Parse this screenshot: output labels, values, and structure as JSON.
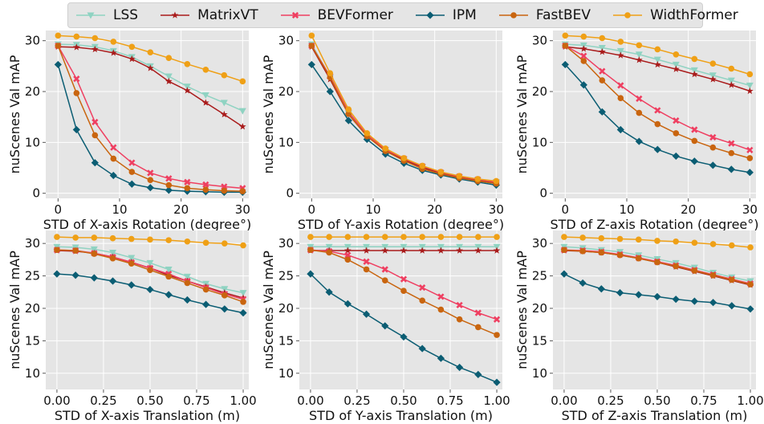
{
  "legend": {
    "entries": [
      {
        "name": "LSS",
        "color": "#8fd3c2",
        "marker": "tri-down"
      },
      {
        "name": "MatrixVT",
        "color": "#a91b1b",
        "marker": "star"
      },
      {
        "name": "BEVFormer",
        "color": "#ef3f61",
        "marker": "x"
      },
      {
        "name": "IPM",
        "color": "#0b5d73",
        "marker": "diamond"
      },
      {
        "name": "FastBEV",
        "color": "#c9650f",
        "marker": "circle"
      },
      {
        "name": "WidthFormer",
        "color": "#efa016",
        "marker": "circle"
      }
    ]
  },
  "chart_data": [
    {
      "type": "line",
      "xlabel": "STD of X-axis Rotation (degree°)",
      "ylabel": "nuScenes Val mAP",
      "xlim": [
        -2,
        31
      ],
      "ylim": [
        -1,
        32
      ],
      "xticks": [
        0,
        10,
        20,
        30
      ],
      "yticks": [
        0,
        10,
        20,
        30
      ],
      "xtick_labels": [
        "0",
        "10",
        "20",
        "30"
      ],
      "ytick_labels": [
        "0",
        "10",
        "20",
        "30"
      ],
      "x": [
        0,
        3,
        6,
        9,
        12,
        15,
        18,
        21,
        24,
        27,
        30
      ],
      "series": [
        {
          "name": "LSS",
          "values": [
            29.3,
            29.2,
            28.8,
            28.0,
            26.8,
            25.0,
            23.0,
            21.0,
            19.3,
            17.8,
            16.2
          ]
        },
        {
          "name": "MatrixVT",
          "values": [
            28.8,
            28.7,
            28.3,
            27.6,
            26.4,
            24.6,
            22.0,
            20.2,
            17.8,
            15.5,
            13.1
          ]
        },
        {
          "name": "BEVFormer",
          "values": [
            29.0,
            22.5,
            14.0,
            9.0,
            6.0,
            4.0,
            2.9,
            2.2,
            1.7,
            1.3,
            1.0
          ]
        },
        {
          "name": "IPM",
          "values": [
            25.3,
            12.5,
            6.0,
            3.5,
            1.8,
            1.1,
            0.6,
            0.4,
            0.3,
            0.2,
            0.2
          ]
        },
        {
          "name": "FastBEV",
          "values": [
            29.0,
            19.7,
            11.4,
            6.8,
            4.2,
            2.6,
            1.6,
            1.0,
            0.7,
            0.5,
            0.4
          ]
        },
        {
          "name": "WidthFormer",
          "values": [
            31.0,
            30.8,
            30.5,
            29.8,
            28.8,
            27.7,
            26.6,
            25.4,
            24.3,
            23.2,
            22.0
          ]
        }
      ]
    },
    {
      "type": "line",
      "xlabel": "STD of Y-axis Rotation (degree°)",
      "ylabel": "nuScenes Val mAP",
      "xlim": [
        -2,
        31
      ],
      "ylim": [
        -1,
        32
      ],
      "xticks": [
        0,
        10,
        20,
        30
      ],
      "yticks": [
        0,
        10,
        20,
        30
      ],
      "xtick_labels": [
        "0",
        "10",
        "20",
        "30"
      ],
      "ytick_labels": [
        "0",
        "10",
        "20",
        "30"
      ],
      "x": [
        0,
        3,
        6,
        9,
        12,
        15,
        18,
        21,
        24,
        27,
        30
      ],
      "series": [
        {
          "name": "LSS",
          "values": [
            29.3,
            22.8,
            15.7,
            11.3,
            8.5,
            6.7,
            5.2,
            4.0,
            3.2,
            2.6,
            2.2
          ]
        },
        {
          "name": "MatrixVT",
          "values": [
            28.8,
            22.4,
            15.5,
            11.2,
            8.4,
            6.6,
            5.1,
            3.9,
            3.1,
            2.5,
            2.0
          ]
        },
        {
          "name": "BEVFormer",
          "values": [
            29.0,
            23.0,
            16.0,
            11.5,
            8.6,
            6.8,
            5.3,
            4.1,
            3.3,
            2.7,
            2.2
          ]
        },
        {
          "name": "IPM",
          "values": [
            25.3,
            20.0,
            14.3,
            10.6,
            7.7,
            5.9,
            4.5,
            3.6,
            2.8,
            2.2,
            1.6
          ]
        },
        {
          "name": "FastBEV",
          "values": [
            29.0,
            22.8,
            15.6,
            11.2,
            8.3,
            6.4,
            4.8,
            3.8,
            3.0,
            2.4,
            1.9
          ]
        },
        {
          "name": "WidthFormer",
          "values": [
            31.0,
            23.6,
            16.5,
            11.8,
            8.8,
            6.9,
            5.4,
            4.2,
            3.4,
            2.8,
            2.4
          ]
        }
      ]
    },
    {
      "type": "line",
      "xlabel": "STD of Z-axis Rotation (degree°)",
      "ylabel": "nuScenes Val mAP",
      "xlim": [
        -2,
        31
      ],
      "ylim": [
        -1,
        32
      ],
      "xticks": [
        0,
        10,
        20,
        30
      ],
      "yticks": [
        0,
        10,
        20,
        30
      ],
      "xtick_labels": [
        "0",
        "10",
        "20",
        "30"
      ],
      "ytick_labels": [
        "0",
        "10",
        "20",
        "30"
      ],
      "x": [
        0,
        3,
        6,
        9,
        12,
        15,
        18,
        21,
        24,
        27,
        30
      ],
      "series": [
        {
          "name": "LSS",
          "values": [
            29.3,
            29.1,
            28.6,
            28.0,
            27.3,
            26.3,
            25.3,
            24.2,
            23.2,
            22.2,
            21.2
          ]
        },
        {
          "name": "MatrixVT",
          "values": [
            28.8,
            28.4,
            27.8,
            27.1,
            26.2,
            25.3,
            24.4,
            23.4,
            22.4,
            21.3,
            20.1
          ]
        },
        {
          "name": "BEVFormer",
          "values": [
            29.0,
            27.0,
            24.0,
            21.2,
            18.6,
            16.3,
            14.3,
            12.5,
            11.0,
            9.8,
            8.5
          ]
        },
        {
          "name": "IPM",
          "values": [
            25.3,
            21.3,
            16.0,
            12.5,
            10.2,
            8.6,
            7.3,
            6.3,
            5.5,
            4.7,
            4.1
          ]
        },
        {
          "name": "FastBEV",
          "values": [
            29.0,
            26.0,
            22.2,
            18.7,
            15.8,
            13.6,
            11.8,
            10.3,
            9.0,
            7.9,
            6.9
          ]
        },
        {
          "name": "WidthFormer",
          "values": [
            31.0,
            30.8,
            30.5,
            29.8,
            29.1,
            28.3,
            27.3,
            26.4,
            25.5,
            24.5,
            23.4
          ]
        }
      ]
    },
    {
      "type": "line",
      "xlabel": "STD of X-axis Translation (m)",
      "ylabel": "nuScenes Val mAP",
      "xlim": [
        -0.06,
        1.03
      ],
      "ylim": [
        7.5,
        32
      ],
      "xticks": [
        0,
        0.25,
        0.5,
        0.75,
        1
      ],
      "yticks": [
        10,
        15,
        20,
        25,
        30
      ],
      "xtick_labels": [
        "0.00",
        "0.25",
        "0.50",
        "0.75",
        "1.00"
      ],
      "ytick_labels": [
        "10",
        "15",
        "20",
        "25",
        "30"
      ],
      "x": [
        0,
        0.1,
        0.2,
        0.3,
        0.4,
        0.5,
        0.6,
        0.7,
        0.8,
        0.9,
        1.0
      ],
      "series": [
        {
          "name": "LSS",
          "values": [
            29.5,
            29.4,
            29.1,
            28.6,
            27.8,
            27.0,
            26.0,
            24.9,
            23.8,
            23.0,
            22.4
          ]
        },
        {
          "name": "MatrixVT",
          "values": [
            28.9,
            28.8,
            28.5,
            27.9,
            27.1,
            26.2,
            25.1,
            24.2,
            23.3,
            22.4,
            21.6
          ]
        },
        {
          "name": "BEVFormer",
          "values": [
            29.0,
            28.9,
            28.5,
            27.9,
            27.1,
            26.2,
            25.3,
            24.2,
            23.2,
            22.2,
            21.4
          ]
        },
        {
          "name": "IPM",
          "values": [
            25.3,
            25.1,
            24.7,
            24.2,
            23.6,
            22.9,
            22.1,
            21.3,
            20.6,
            19.9,
            19.3
          ]
        },
        {
          "name": "FastBEV",
          "values": [
            29.0,
            28.9,
            28.4,
            27.7,
            26.9,
            25.9,
            24.9,
            23.9,
            22.9,
            22.0,
            21.0
          ]
        },
        {
          "name": "WidthFormer",
          "values": [
            31.0,
            30.9,
            30.9,
            30.8,
            30.7,
            30.6,
            30.5,
            30.3,
            30.1,
            30.0,
            29.7
          ]
        }
      ]
    },
    {
      "type": "line",
      "xlabel": "STD of Y-axis Translation (m)",
      "ylabel": "nuScenes Val mAP",
      "xlim": [
        -0.06,
        1.03
      ],
      "ylim": [
        7.5,
        32
      ],
      "xticks": [
        0,
        0.25,
        0.5,
        0.75,
        1
      ],
      "yticks": [
        10,
        15,
        20,
        25,
        30
      ],
      "xtick_labels": [
        "0.00",
        "0.25",
        "0.50",
        "0.75",
        "1.00"
      ],
      "ytick_labels": [
        "10",
        "15",
        "20",
        "25",
        "30"
      ],
      "x": [
        0,
        0.1,
        0.2,
        0.3,
        0.4,
        0.5,
        0.6,
        0.7,
        0.8,
        0.9,
        1.0
      ],
      "series": [
        {
          "name": "LSS",
          "values": [
            29.5,
            29.5,
            29.5,
            29.5,
            29.5,
            29.5,
            29.5,
            29.5,
            29.5,
            29.5,
            29.5
          ]
        },
        {
          "name": "MatrixVT",
          "values": [
            28.9,
            28.9,
            28.9,
            28.9,
            28.9,
            28.9,
            28.9,
            28.9,
            28.9,
            28.9,
            28.9
          ]
        },
        {
          "name": "BEVFormer",
          "values": [
            29.0,
            28.8,
            28.2,
            27.2,
            26.0,
            24.5,
            23.2,
            21.8,
            20.5,
            19.3,
            18.3
          ]
        },
        {
          "name": "IPM",
          "values": [
            25.3,
            22.5,
            20.7,
            19.1,
            17.3,
            15.6,
            13.8,
            12.3,
            10.9,
            9.8,
            8.6
          ]
        },
        {
          "name": "FastBEV",
          "values": [
            29.0,
            28.6,
            27.5,
            26.0,
            24.3,
            22.7,
            21.2,
            19.8,
            18.3,
            17.1,
            15.9
          ]
        },
        {
          "name": "WidthFormer",
          "values": [
            31.0,
            31.0,
            31.0,
            31.0,
            31.0,
            31.0,
            31.0,
            31.0,
            31.0,
            31.0,
            31.0
          ]
        }
      ]
    },
    {
      "type": "line",
      "xlabel": "STD of Z-axis Translation (m)",
      "ylabel": "nuScenes Val mAP",
      "xlim": [
        -0.06,
        1.03
      ],
      "ylim": [
        7.5,
        32
      ],
      "xticks": [
        0,
        0.25,
        0.5,
        0.75,
        1
      ],
      "yticks": [
        10,
        15,
        20,
        25,
        30
      ],
      "xtick_labels": [
        "0.00",
        "0.25",
        "0.50",
        "0.75",
        "1.00"
      ],
      "ytick_labels": [
        "10",
        "15",
        "20",
        "25",
        "30"
      ],
      "x": [
        0,
        0.1,
        0.2,
        0.3,
        0.4,
        0.5,
        0.6,
        0.7,
        0.8,
        0.9,
        1.0
      ],
      "series": [
        {
          "name": "LSS",
          "values": [
            29.5,
            29.3,
            29.0,
            28.7,
            28.2,
            27.6,
            27.0,
            26.3,
            25.5,
            24.8,
            24.2
          ]
        },
        {
          "name": "MatrixVT",
          "values": [
            28.9,
            28.8,
            28.6,
            28.2,
            27.7,
            27.1,
            26.4,
            25.7,
            25.0,
            24.3,
            23.6
          ]
        },
        {
          "name": "BEVFormer",
          "values": [
            29.0,
            28.9,
            28.7,
            28.3,
            27.8,
            27.2,
            26.6,
            25.9,
            25.2,
            24.5,
            23.8
          ]
        },
        {
          "name": "IPM",
          "values": [
            25.3,
            23.9,
            23.0,
            22.4,
            22.1,
            21.8,
            21.4,
            21.1,
            20.9,
            20.4,
            19.9
          ]
        },
        {
          "name": "FastBEV",
          "values": [
            29.0,
            28.8,
            28.6,
            28.2,
            27.7,
            27.1,
            26.5,
            25.8,
            25.1,
            24.4,
            23.7
          ]
        },
        {
          "name": "WidthFormer",
          "values": [
            31.0,
            30.9,
            30.8,
            30.7,
            30.6,
            30.4,
            30.3,
            30.1,
            29.9,
            29.7,
            29.4
          ]
        }
      ]
    }
  ]
}
